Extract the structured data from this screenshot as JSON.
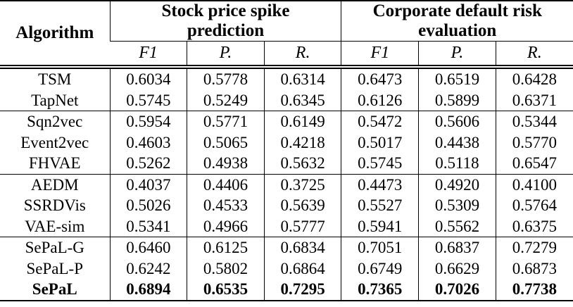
{
  "table": {
    "header": {
      "algorithm_label": "Algorithm",
      "group_titles": [
        "Stock price spike prediction",
        "Corporate default risk evaluation"
      ],
      "metric_labels": [
        "F1",
        "P.",
        "R."
      ]
    },
    "groups": [
      {
        "rows": [
          {
            "name": "TSM",
            "values": [
              "0.6034",
              "0.5778",
              "0.6314",
              "0.6473",
              "0.6519",
              "0.6428"
            ]
          },
          {
            "name": "TapNet",
            "values": [
              "0.5745",
              "0.5249",
              "0.6345",
              "0.6126",
              "0.5899",
              "0.6371"
            ]
          }
        ]
      },
      {
        "rows": [
          {
            "name": "Sqn2vec",
            "values": [
              "0.5954",
              "0.5771",
              "0.6149",
              "0.5472",
              "0.5606",
              "0.5344"
            ]
          },
          {
            "name": "Event2vec",
            "values": [
              "0.4603",
              "0.5065",
              "0.4218",
              "0.5017",
              "0.4438",
              "0.5770"
            ]
          },
          {
            "name": "FHVAE",
            "values": [
              "0.5262",
              "0.4938",
              "0.5632",
              "0.5745",
              "0.5118",
              "0.6547"
            ]
          }
        ]
      },
      {
        "rows": [
          {
            "name": "AEDM",
            "values": [
              "0.4037",
              "0.4406",
              "0.3725",
              "0.4473",
              "0.4920",
              "0.4100"
            ]
          },
          {
            "name": "SSRDVis",
            "values": [
              "0.5026",
              "0.4533",
              "0.5639",
              "0.5527",
              "0.5309",
              "0.5764"
            ]
          },
          {
            "name": "VAE-sim",
            "values": [
              "0.5341",
              "0.4966",
              "0.5777",
              "0.5941",
              "0.5562",
              "0.6375"
            ]
          }
        ]
      },
      {
        "rows": [
          {
            "name": "SePaL-G",
            "values": [
              "0.6460",
              "0.6125",
              "0.6834",
              "0.7051",
              "0.6837",
              "0.7279"
            ]
          },
          {
            "name": "SePaL-P",
            "values": [
              "0.6242",
              "0.5802",
              "0.6864",
              "0.6749",
              "0.6629",
              "0.6873"
            ]
          },
          {
            "name": "SePaL",
            "values": [
              "0.6894",
              "0.6535",
              "0.7295",
              "0.7365",
              "0.7026",
              "0.7738"
            ],
            "emphasis": true
          }
        ]
      }
    ]
  }
}
